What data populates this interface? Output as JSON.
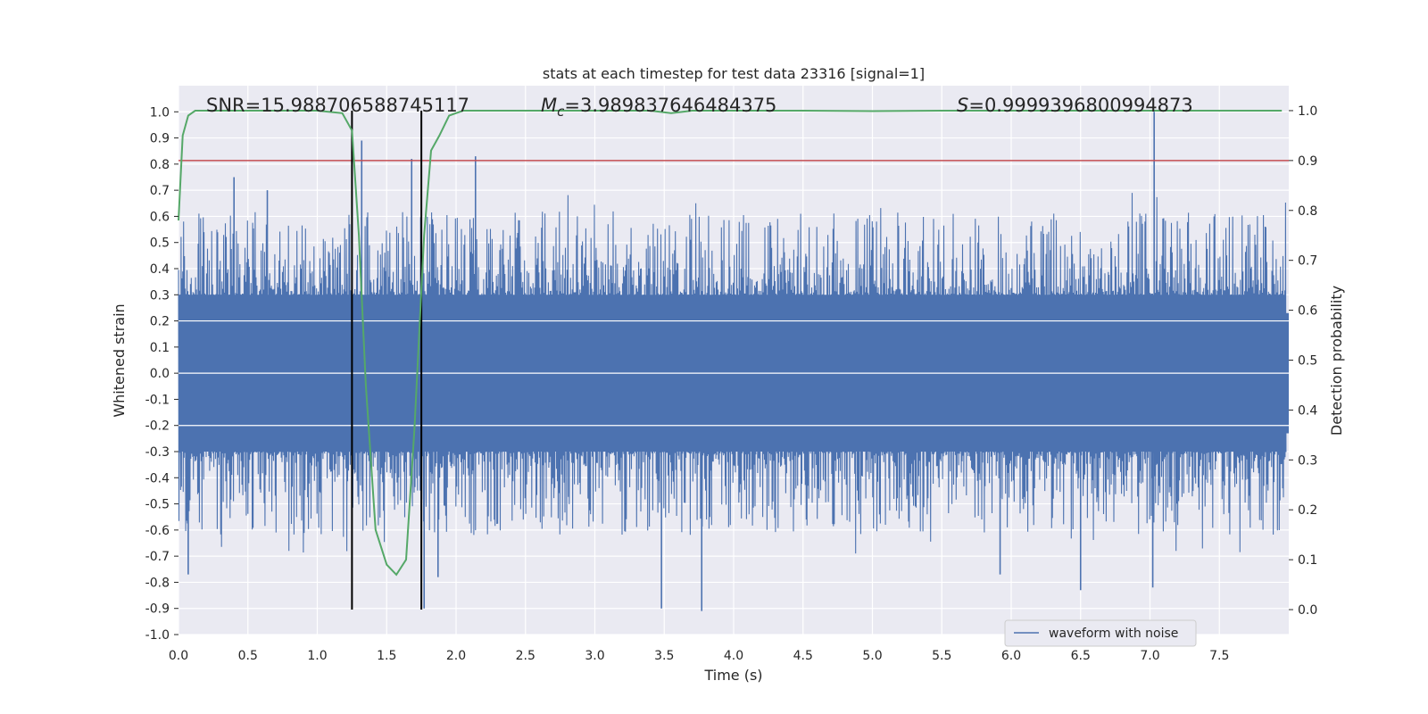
{
  "chart_data": {
    "type": "line",
    "title": "stats at each timestep for test data 23316 [signal=1]",
    "xlabel": "Time (s)",
    "ylabel": "Whitened strain",
    "ylabel_right": "Detection probability",
    "xlim": [
      0,
      8.0
    ],
    "ylim": [
      -1.0,
      1.1
    ],
    "ylim_right": [
      -0.05,
      1.05
    ],
    "x_ticks": [
      "0.0",
      "0.5",
      "1.0",
      "1.5",
      "2.0",
      "2.5",
      "3.0",
      "3.5",
      "4.0",
      "4.5",
      "5.0",
      "5.5",
      "6.0",
      "6.5",
      "7.0",
      "7.5"
    ],
    "y_ticks": [
      "-1.0",
      "-0.9",
      "-0.8",
      "-0.7",
      "-0.6",
      "-0.5",
      "-0.4",
      "-0.3",
      "-0.2",
      "-0.1",
      "0.0",
      "0.1",
      "0.2",
      "0.3",
      "0.4",
      "0.5",
      "0.6",
      "0.7",
      "0.8",
      "0.9",
      "1.0"
    ],
    "y_ticks_right": [
      "0.0",
      "0.1",
      "0.2",
      "0.3",
      "0.4",
      "0.5",
      "0.6",
      "0.7",
      "0.8",
      "0.9",
      "1.0"
    ],
    "annotations": {
      "snr": "SNR=15.988706588745117",
      "mc": "=3.989837646484375",
      "mc_symbol": "M",
      "mc_subscript": "c",
      "s": "=0.9999396800994873",
      "s_symbol": "S"
    },
    "legend": {
      "placement": "bottom-right",
      "entries": [
        "waveform with noise"
      ]
    },
    "threshold_line": {
      "axis": "right",
      "value": 0.9,
      "color": "#c44e52"
    },
    "vertical_lines": [
      1.25,
      1.75
    ],
    "series": [
      {
        "name": "waveform with noise",
        "axis": "left",
        "color": "#4c72b0",
        "style": "noise",
        "band": [
          -0.35,
          0.35
        ],
        "peaks": [
          {
            "x": 0.07,
            "y": -0.77
          },
          {
            "x": 0.4,
            "y": 0.75
          },
          {
            "x": 0.64,
            "y": 0.7
          },
          {
            "x": 1.32,
            "y": 0.89
          },
          {
            "x": 1.68,
            "y": 0.82
          },
          {
            "x": 1.77,
            "y": -0.9
          },
          {
            "x": 2.14,
            "y": 0.83
          },
          {
            "x": 1.87,
            "y": -0.78
          },
          {
            "x": 3.48,
            "y": -0.9
          },
          {
            "x": 3.77,
            "y": -0.91
          },
          {
            "x": 6.5,
            "y": -0.83
          },
          {
            "x": 7.03,
            "y": 1.0
          },
          {
            "x": 7.02,
            "y": -0.82
          },
          {
            "x": 5.92,
            "y": -0.77
          }
        ]
      },
      {
        "name": "detection probability",
        "axis": "right",
        "color": "#55a868",
        "x": [
          0.0,
          0.03,
          0.07,
          0.12,
          0.2,
          0.5,
          1.0,
          1.18,
          1.25,
          1.3,
          1.35,
          1.42,
          1.5,
          1.57,
          1.64,
          1.7,
          1.77,
          1.82,
          1.88,
          1.95,
          2.05,
          2.5,
          3.0,
          3.4,
          3.55,
          3.7,
          4.0,
          4.5,
          5.0,
          5.5,
          6.0,
          6.5,
          7.0,
          7.5,
          7.95
        ],
        "values": [
          0.78,
          0.95,
          0.99,
          1.0,
          1.0,
          1.0,
          1.0,
          0.995,
          0.96,
          0.75,
          0.45,
          0.16,
          0.09,
          0.07,
          0.1,
          0.36,
          0.75,
          0.92,
          0.95,
          0.99,
          1.0,
          1.0,
          1.0,
          1.0,
          0.995,
          1.0,
          1.0,
          1.0,
          0.999,
          1.0,
          1.0,
          1.0,
          1.0,
          1.0,
          1.0
        ]
      }
    ]
  }
}
